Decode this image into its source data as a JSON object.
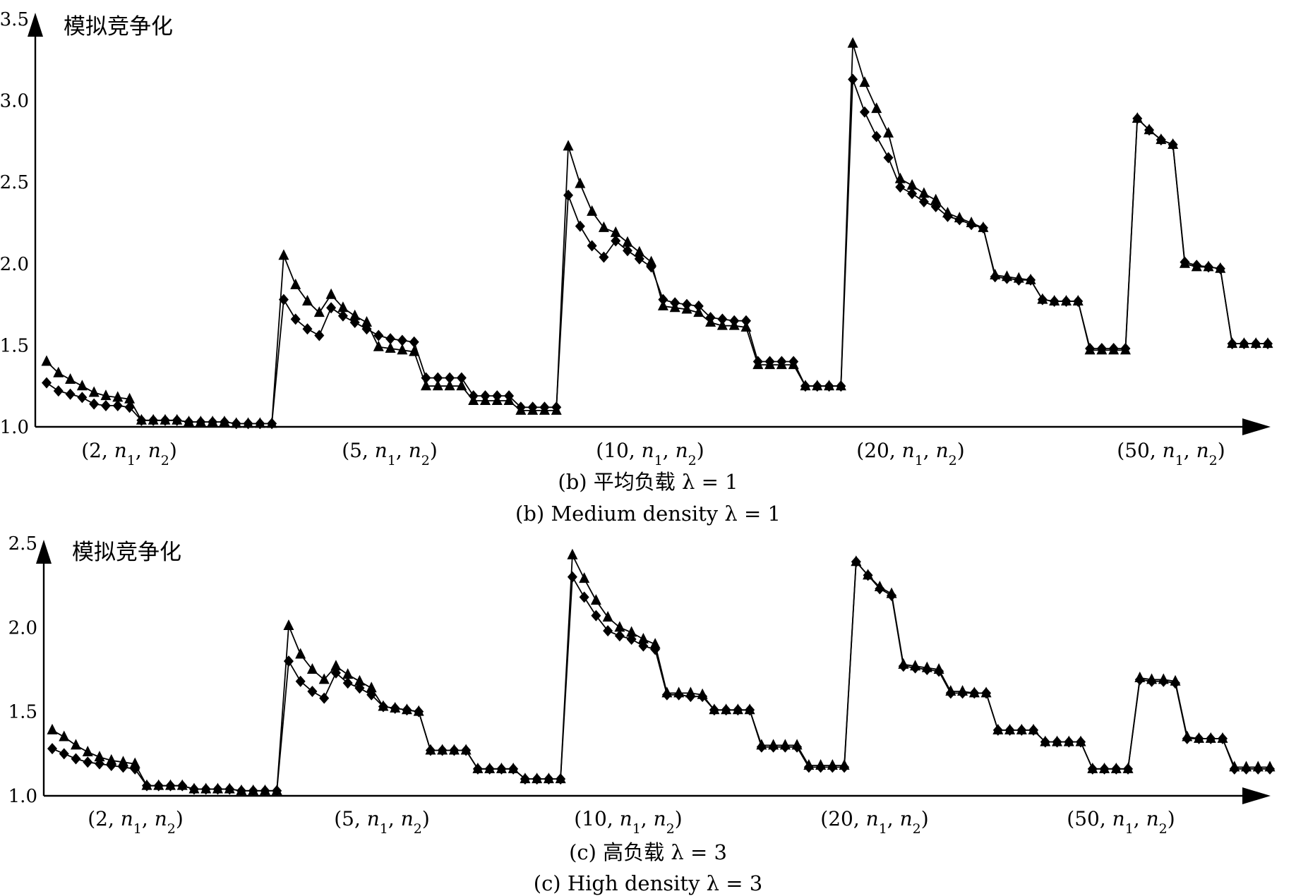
{
  "chart_data": [
    {
      "type": "line",
      "ylabel": "模拟竞争化",
      "xlabel": "",
      "ylim": [
        1.0,
        3.5
      ],
      "yticks": [
        "1.0",
        "1.5",
        "2.0",
        "2.5",
        "3.0",
        "3.5"
      ],
      "group_labels": [
        "(2, n1, n2)",
        "(5, n1, n2)",
        "(10, n1, n2)",
        "(20, n1, n2)",
        "(50, n1, n2)"
      ],
      "caption_zh": "(b) 平均负载 λ = 1",
      "caption_en": "(b) Medium density λ = 1",
      "grid": false,
      "series": [
        {
          "marker": "triangle",
          "values": [
            1.4,
            1.33,
            1.29,
            1.25,
            1.21,
            1.19,
            1.18,
            1.17,
            1.04,
            1.04,
            1.04,
            1.04,
            1.03,
            1.03,
            1.03,
            1.03,
            1.02,
            1.02,
            1.02,
            1.02,
            2.05,
            1.87,
            1.77,
            1.7,
            1.81,
            1.73,
            1.68,
            1.64,
            1.49,
            1.48,
            1.47,
            1.46,
            1.25,
            1.25,
            1.25,
            1.25,
            1.16,
            1.16,
            1.16,
            1.16,
            1.1,
            1.1,
            1.1,
            1.1,
            2.72,
            2.49,
            2.32,
            2.22,
            2.19,
            2.13,
            2.07,
            2.01,
            1.74,
            1.73,
            1.72,
            1.7,
            1.64,
            1.62,
            1.62,
            1.61,
            1.38,
            1.38,
            1.38,
            1.38,
            1.25,
            1.25,
            1.25,
            1.25,
            3.35,
            3.11,
            2.95,
            2.8,
            2.52,
            2.48,
            2.43,
            2.39,
            2.31,
            2.28,
            2.25,
            2.22,
            1.93,
            1.92,
            1.91,
            1.9,
            1.78,
            1.77,
            1.77,
            1.77,
            1.47,
            1.47,
            1.47,
            1.47,
            2.89,
            2.82,
            2.76,
            2.73,
            2.0,
            1.98,
            1.98,
            1.97,
            1.51,
            1.51,
            1.51,
            1.51
          ]
        },
        {
          "marker": "diamond",
          "values": [
            1.27,
            1.22,
            1.2,
            1.18,
            1.14,
            1.13,
            1.13,
            1.12,
            1.04,
            1.04,
            1.04,
            1.04,
            1.03,
            1.03,
            1.03,
            1.03,
            1.02,
            1.02,
            1.02,
            1.02,
            1.78,
            1.66,
            1.6,
            1.56,
            1.73,
            1.68,
            1.64,
            1.6,
            1.56,
            1.54,
            1.53,
            1.52,
            1.3,
            1.3,
            1.3,
            1.3,
            1.19,
            1.19,
            1.19,
            1.19,
            1.12,
            1.12,
            1.12,
            1.12,
            2.42,
            2.23,
            2.11,
            2.04,
            2.14,
            2.08,
            2.03,
            1.98,
            1.78,
            1.76,
            1.75,
            1.74,
            1.67,
            1.66,
            1.65,
            1.65,
            1.4,
            1.4,
            1.4,
            1.4,
            1.25,
            1.25,
            1.25,
            1.25,
            3.13,
            2.93,
            2.78,
            2.65,
            2.47,
            2.43,
            2.38,
            2.35,
            2.29,
            2.27,
            2.24,
            2.22,
            1.92,
            1.91,
            1.9,
            1.9,
            1.78,
            1.77,
            1.77,
            1.77,
            1.48,
            1.48,
            1.48,
            1.48,
            2.89,
            2.82,
            2.76,
            2.73,
            2.01,
            1.99,
            1.98,
            1.97,
            1.51,
            1.51,
            1.51,
            1.51
          ]
        }
      ]
    },
    {
      "type": "line",
      "ylabel": "模拟竞争化",
      "xlabel": "",
      "ylim": [
        1.0,
        2.5
      ],
      "yticks": [
        "1.0",
        "1.5",
        "2.0",
        "2.5"
      ],
      "group_labels": [
        "(2, n1, n2)",
        "(5, n1, n2)",
        "(10, n1, n2)",
        "(20, n1, n2)",
        "(50, n1, n2)"
      ],
      "caption_zh": "(c) 高负载 λ = 3",
      "caption_en": "(c) High density λ = 3",
      "grid": false,
      "series": [
        {
          "marker": "triangle",
          "values": [
            1.39,
            1.35,
            1.3,
            1.26,
            1.23,
            1.21,
            1.2,
            1.19,
            1.06,
            1.06,
            1.06,
            1.06,
            1.04,
            1.04,
            1.04,
            1.04,
            1.03,
            1.03,
            1.03,
            1.03,
            2.01,
            1.84,
            1.75,
            1.69,
            1.77,
            1.72,
            1.68,
            1.64,
            1.53,
            1.52,
            1.51,
            1.5,
            1.27,
            1.27,
            1.27,
            1.27,
            1.16,
            1.16,
            1.16,
            1.16,
            1.1,
            1.1,
            1.1,
            1.1,
            2.43,
            2.29,
            2.16,
            2.06,
            2.0,
            1.97,
            1.93,
            1.9,
            1.61,
            1.61,
            1.61,
            1.6,
            1.51,
            1.51,
            1.51,
            1.51,
            1.3,
            1.3,
            1.3,
            1.3,
            1.18,
            1.18,
            1.18,
            1.18,
            2.39,
            2.31,
            2.24,
            2.2,
            1.78,
            1.77,
            1.76,
            1.75,
            1.62,
            1.62,
            1.61,
            1.61,
            1.39,
            1.39,
            1.39,
            1.39,
            1.32,
            1.32,
            1.32,
            1.32,
            1.16,
            1.16,
            1.16,
            1.16,
            1.7,
            1.69,
            1.69,
            1.68,
            1.35,
            1.34,
            1.34,
            1.34,
            1.17,
            1.17,
            1.17,
            1.17
          ]
        },
        {
          "marker": "diamond",
          "values": [
            1.28,
            1.25,
            1.22,
            1.2,
            1.19,
            1.18,
            1.17,
            1.16,
            1.06,
            1.06,
            1.06,
            1.06,
            1.04,
            1.04,
            1.04,
            1.04,
            1.03,
            1.03,
            1.03,
            1.03,
            1.8,
            1.68,
            1.62,
            1.58,
            1.73,
            1.67,
            1.64,
            1.6,
            1.53,
            1.52,
            1.51,
            1.5,
            1.27,
            1.27,
            1.27,
            1.27,
            1.16,
            1.16,
            1.16,
            1.16,
            1.1,
            1.1,
            1.1,
            1.1,
            2.3,
            2.18,
            2.07,
            1.98,
            1.95,
            1.93,
            1.89,
            1.87,
            1.6,
            1.6,
            1.59,
            1.59,
            1.51,
            1.51,
            1.51,
            1.51,
            1.29,
            1.29,
            1.29,
            1.29,
            1.17,
            1.17,
            1.17,
            1.17,
            2.39,
            2.31,
            2.23,
            2.19,
            1.77,
            1.76,
            1.75,
            1.74,
            1.61,
            1.61,
            1.61,
            1.61,
            1.39,
            1.39,
            1.39,
            1.39,
            1.32,
            1.32,
            1.32,
            1.32,
            1.16,
            1.16,
            1.16,
            1.16,
            1.69,
            1.68,
            1.68,
            1.67,
            1.34,
            1.34,
            1.34,
            1.34,
            1.16,
            1.16,
            1.16,
            1.16
          ]
        }
      ]
    }
  ]
}
